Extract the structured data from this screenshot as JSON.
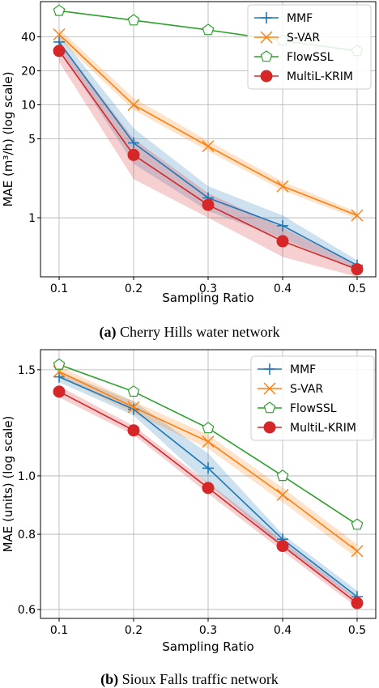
{
  "chart_data": [
    {
      "type": "line",
      "caption_label": "(a)",
      "caption_text": "Cherry Hills water network",
      "xlabel": "Sampling Ratio",
      "ylabel": "MAE (m³/h) (log scale)",
      "y_scale": "log",
      "x": [
        0.1,
        0.2,
        0.3,
        0.4,
        0.5
      ],
      "x_tick_labels": [
        "0.1",
        "0.2",
        "0.3",
        "0.4",
        "0.5"
      ],
      "xlim": [
        0.075,
        0.525
      ],
      "ylim": [
        0.3,
        82
      ],
      "y_ticks": [
        1,
        5,
        10,
        20,
        40
      ],
      "y_tick_labels": [
        "1",
        "5",
        "10",
        "20",
        "40"
      ],
      "grid": true,
      "legend_position": "top-right",
      "series": [
        {
          "name": "MMF",
          "color": "#1f77b4",
          "marker": "plus",
          "marker_color": "#1f77b4",
          "values": [
            36,
            4.6,
            1.5,
            0.85,
            0.38
          ],
          "lower": [
            31,
            3.0,
            1.15,
            0.65,
            0.34
          ],
          "upper": [
            42,
            6.2,
            1.9,
            1.05,
            0.42
          ],
          "band_color": "#1f77b4"
        },
        {
          "name": "S-VAR",
          "color": "#ff7f0e",
          "marker": "x",
          "marker_color": "#ff7f0e",
          "values": [
            42,
            10,
            4.3,
            1.9,
            1.05
          ],
          "lower": [
            38,
            9,
            3.9,
            1.75,
            0.98
          ],
          "upper": [
            47,
            11.5,
            4.8,
            2.1,
            1.12
          ],
          "band_color": "#ff7f0e"
        },
        {
          "name": "FlowSSL",
          "color": "#2ca02c",
          "marker": "pentagon",
          "marker_color": "#2ca02c",
          "values": [
            68,
            56,
            46,
            37,
            30
          ]
        },
        {
          "name": "MultiL-KRIM",
          "color": "#d62728",
          "marker": "circle",
          "marker_color": "#d62728",
          "values": [
            30,
            3.6,
            1.3,
            0.62,
            0.35
          ],
          "lower": [
            24,
            2.2,
            1.0,
            0.45,
            0.3
          ],
          "upper": [
            36,
            5.0,
            1.65,
            0.82,
            0.38
          ],
          "band_color": "#d62728"
        }
      ]
    },
    {
      "type": "line",
      "caption_label": "(b)",
      "caption_text": "Sioux Falls traffic network",
      "xlabel": "Sampling Ratio",
      "ylabel": "MAE (units) (log scale)",
      "y_scale": "log",
      "x": [
        0.1,
        0.2,
        0.3,
        0.4,
        0.5
      ],
      "x_tick_labels": [
        "0.1",
        "0.2",
        "0.3",
        "0.4",
        "0.5"
      ],
      "xlim": [
        0.075,
        0.525
      ],
      "ylim": [
        0.58,
        1.62
      ],
      "y_ticks": [
        0.6,
        0.8,
        1.0,
        1.5
      ],
      "y_tick_labels": [
        "0.6",
        "0.8",
        "1.0",
        "1.5"
      ],
      "grid": true,
      "legend_position": "top-right",
      "series": [
        {
          "name": "MMF",
          "color": "#1f77b4",
          "marker": "plus",
          "marker_color": "#1f77b4",
          "values": [
            1.46,
            1.29,
            1.03,
            0.785,
            0.63
          ],
          "lower": [
            1.43,
            1.26,
            0.97,
            0.765,
            0.62
          ],
          "upper": [
            1.49,
            1.33,
            1.09,
            0.8,
            0.645
          ],
          "band_color": "#1f77b4"
        },
        {
          "name": "S-VAR",
          "color": "#ff7f0e",
          "marker": "x",
          "marker_color": "#ff7f0e",
          "values": [
            1.49,
            1.3,
            1.14,
            0.93,
            0.75
          ],
          "lower": [
            1.46,
            1.27,
            1.11,
            0.905,
            0.73
          ],
          "upper": [
            1.52,
            1.33,
            1.17,
            0.955,
            0.77
          ],
          "band_color": "#ff7f0e"
        },
        {
          "name": "FlowSSL",
          "color": "#2ca02c",
          "marker": "pentagon",
          "marker_color": "#2ca02c",
          "values": [
            1.53,
            1.38,
            1.2,
            1.0,
            0.83
          ]
        },
        {
          "name": "MultiL-KRIM",
          "color": "#d62728",
          "marker": "circle",
          "marker_color": "#d62728",
          "values": [
            1.38,
            1.19,
            0.955,
            0.765,
            0.615
          ],
          "lower": [
            1.35,
            1.17,
            0.935,
            0.75,
            0.605
          ],
          "upper": [
            1.41,
            1.21,
            0.975,
            0.78,
            0.625
          ],
          "band_color": "#d62728"
        }
      ]
    }
  ]
}
